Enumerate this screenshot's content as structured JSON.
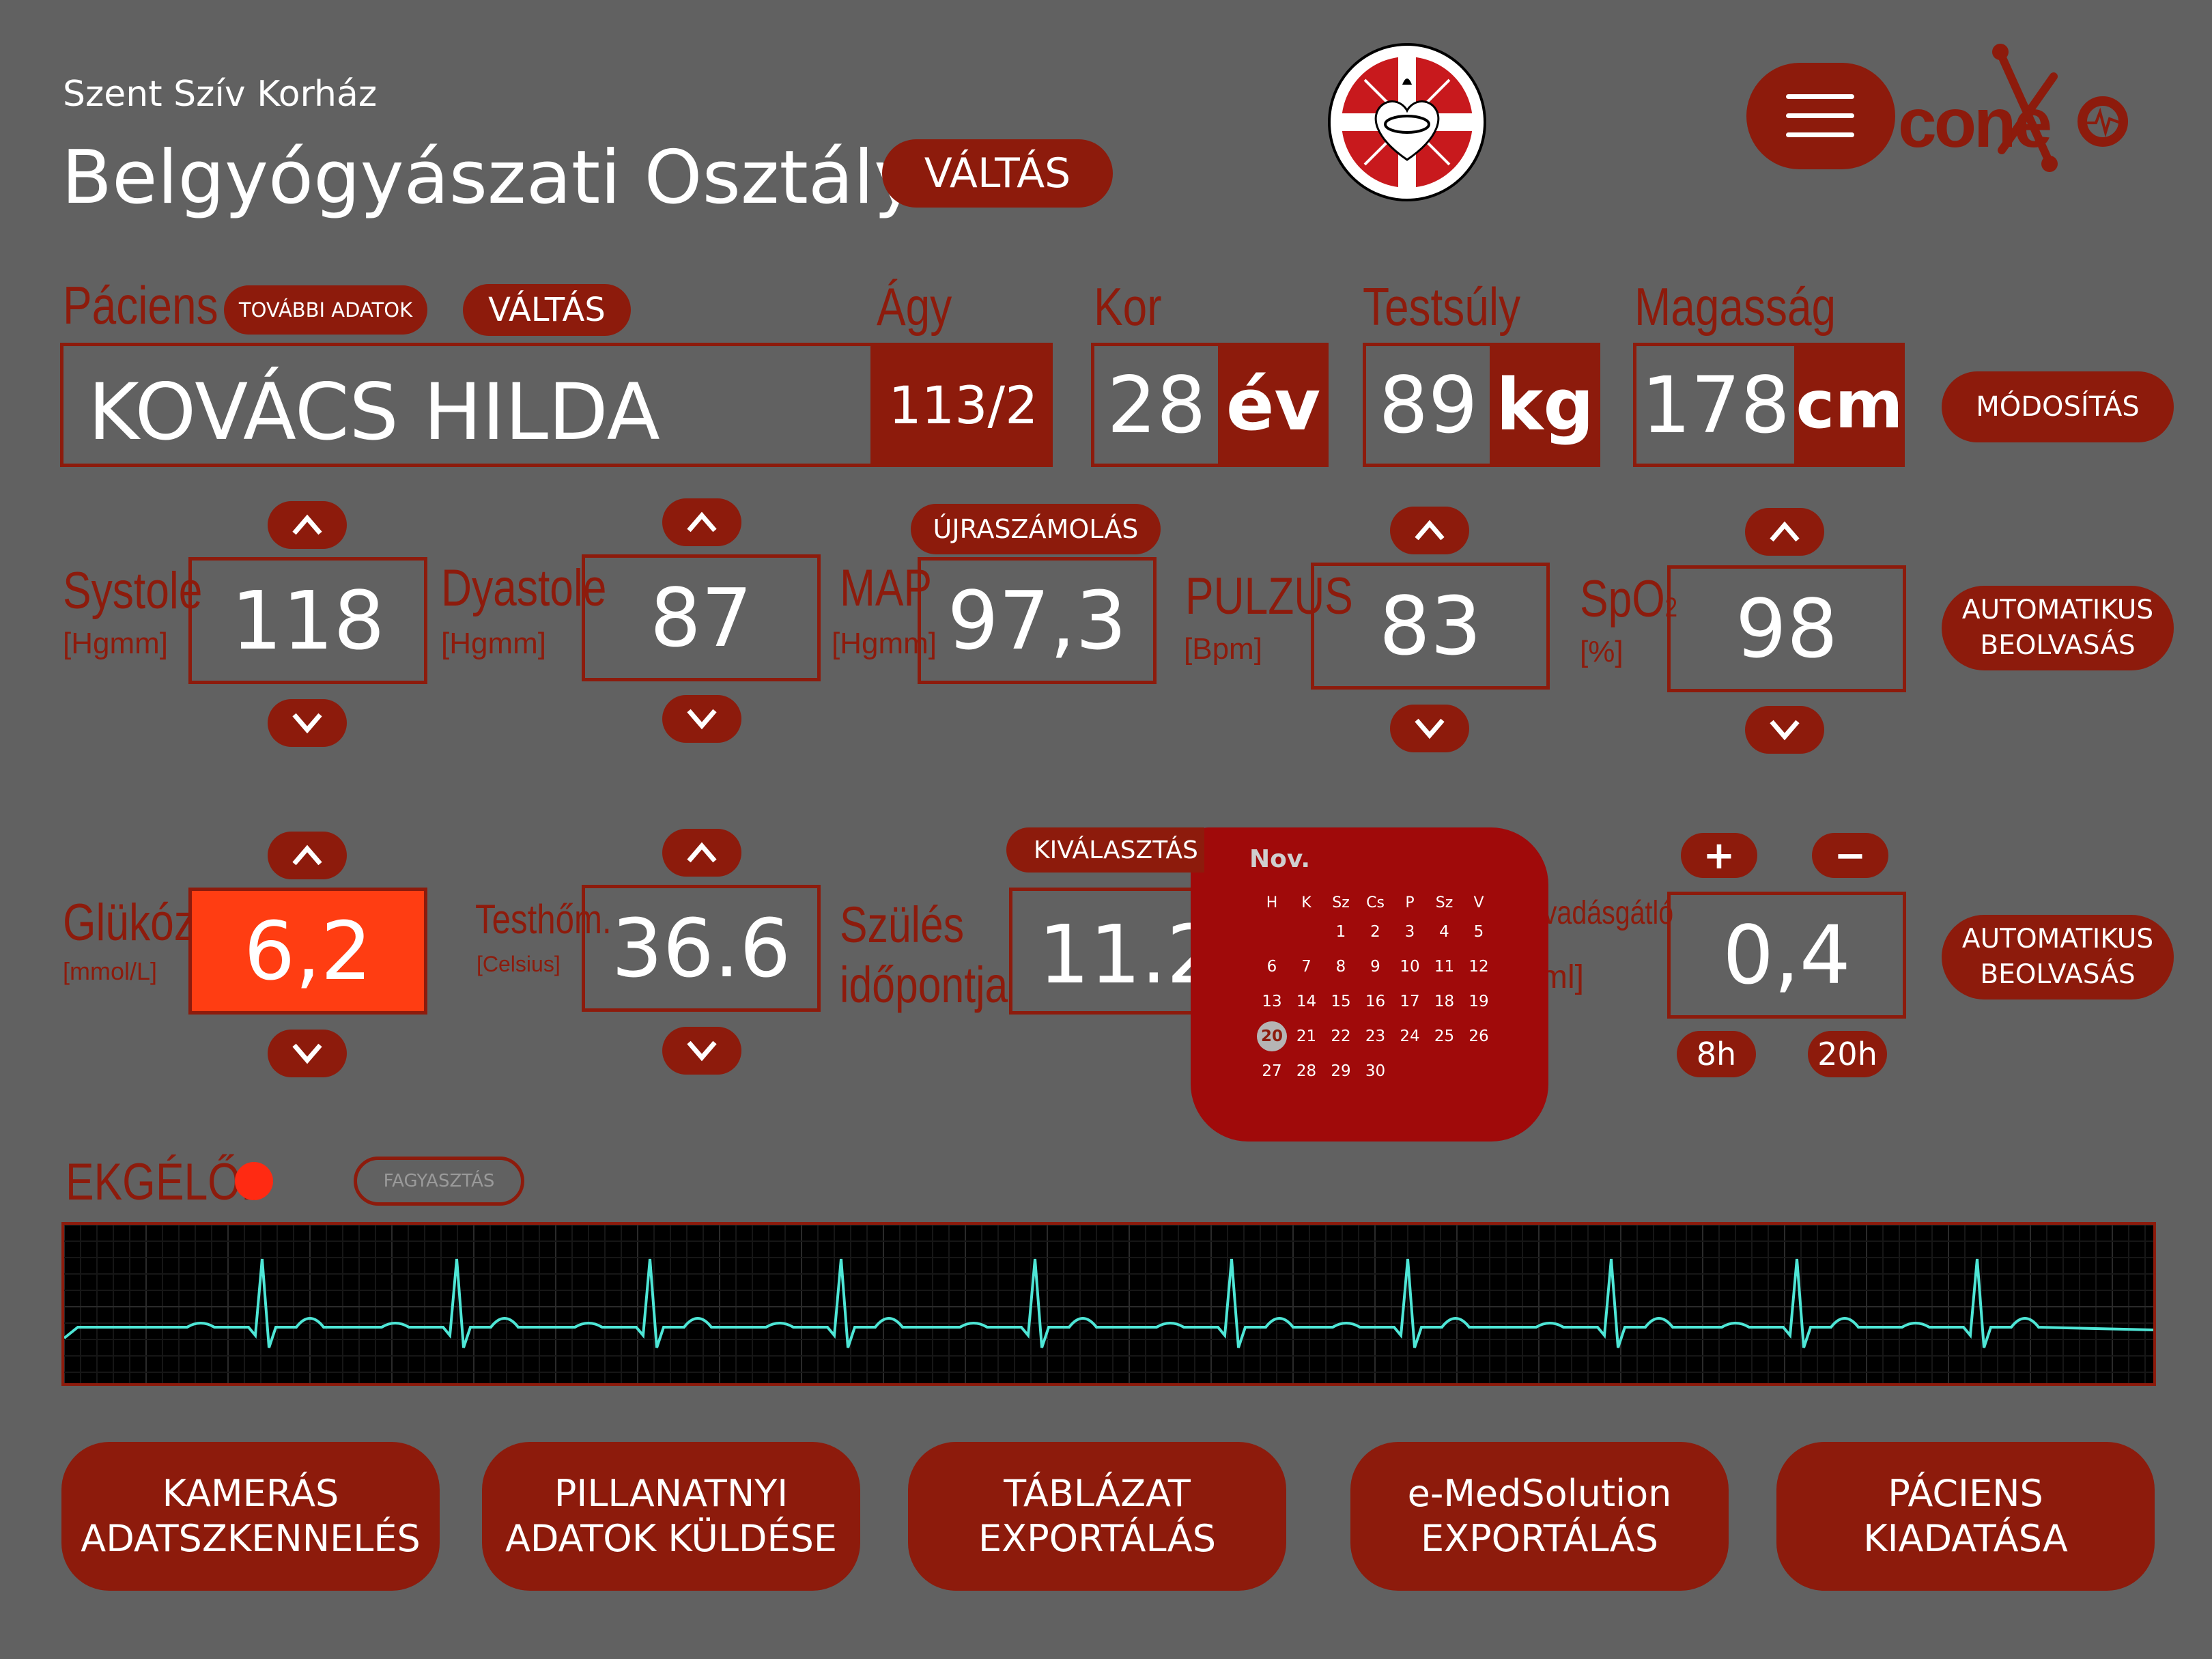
{
  "header": {
    "hospital": "Szent Szív Korház",
    "department": "Belgyógyászati Osztály",
    "switch_label": "VÁLTÁS",
    "brand": "conexio"
  },
  "patient": {
    "label": "Páciens",
    "more_label": "TOVÁBBI ADATOK",
    "switch_label": "VÁLTÁS",
    "name": "KOVÁCS HILDA",
    "bed_label": "Ágy",
    "bed": "113/2",
    "age_label": "Kor",
    "age": "28",
    "age_unit": "év",
    "weight_label": "Testsúly",
    "weight": "89",
    "weight_unit": "kg",
    "height_label": "Magasság",
    "height": "178",
    "height_unit": "cm",
    "modify_label": "MÓDOSÍTÁS"
  },
  "vitals": {
    "systole": {
      "label": "Systole",
      "unit": "[Hgmm]",
      "value": "118"
    },
    "diastole": {
      "label": "Dyastole",
      "unit": "[Hgmm]",
      "value": "87"
    },
    "map": {
      "label": "MAP",
      "unit": "[Hgmm]",
      "value": "97,3",
      "recalc_label": "ÚJRASZÁMOLÁS"
    },
    "pulse": {
      "label": "PULZUS",
      "unit": "[Bpm]",
      "value": "83"
    },
    "spo2": {
      "label": "SpO",
      "sub": "2",
      "unit": "[%]",
      "value": "98"
    },
    "auto_read_label_1": "AUTOMATIKUS",
    "auto_read_label_2": "BEOLVASÁS"
  },
  "row2": {
    "glucose": {
      "label": "Glükóz",
      "unit": "[mmol/L]",
      "value": "6,2"
    },
    "temp": {
      "label": "Testhőm.",
      "unit": "[Celsius]",
      "value": "36.6"
    },
    "birth": {
      "label_1": "Szülés",
      "label_2": "időpontja",
      "value": "11.20",
      "select_label": "KIVÁLASZTÁS"
    },
    "anticoag": {
      "label": "lvadásgátló",
      "unit": "ml]",
      "value": "0,4",
      "plus": "+",
      "minus": "−",
      "time_1": "8h",
      "time_2": "20h"
    }
  },
  "calendar": {
    "month": "Nov.",
    "weekdays": [
      "H",
      "K",
      "Sz",
      "Cs",
      "P",
      "Sz",
      "V"
    ],
    "weeks": [
      [
        "",
        "",
        "1",
        "2",
        "3",
        "4",
        "5"
      ],
      [
        "6",
        "7",
        "8",
        "9",
        "10",
        "11",
        "12"
      ],
      [
        "13",
        "14",
        "15",
        "16",
        "17",
        "18",
        "19"
      ],
      [
        "20",
        "21",
        "22",
        "23",
        "24",
        "25",
        "26"
      ],
      [
        "27",
        "28",
        "29",
        "30",
        "",
        "",
        ""
      ]
    ],
    "selected": "20"
  },
  "ekg": {
    "label": "EKG",
    "live_label": "ÉLŐ:",
    "freeze_label": "FAGYASZTÁS"
  },
  "actions": [
    {
      "label": "KAMERÁS\nADATSZKENNELÉS"
    },
    {
      "label": "PILLANATNYI\nADATOK KÜLDÉSE"
    },
    {
      "label": "TÁBLÁZAT\nEXPORTÁLÁS"
    },
    {
      "label": "e-MedSolution\nEXPORTÁLÁS"
    },
    {
      "label": "PÁCIENS\nKIADATÁSA"
    }
  ],
  "colors": {
    "background": "#616161",
    "accent": "#8d1b0c",
    "alert": "#ff3d12",
    "ekg_trace": "#4ee6d6"
  }
}
